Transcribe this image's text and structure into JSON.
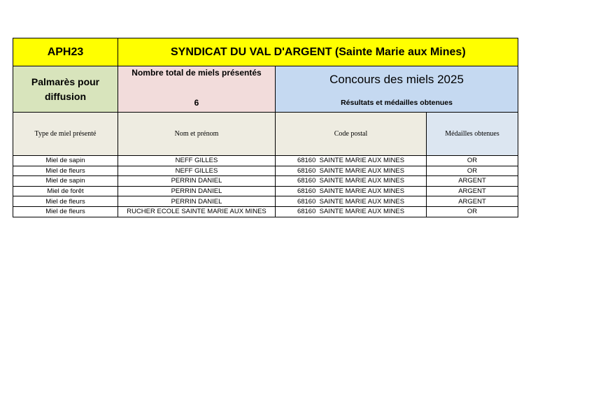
{
  "header": {
    "code": "APH23",
    "title": "SYNDICAT DU VAL D'ARGENT (Sainte Marie aux Mines)"
  },
  "subheader": {
    "palmares": "Palmarès pour diffusion",
    "total_label": "Nombre total de miels présentés",
    "total_value": "6",
    "contest_title": "Concours des miels 2025",
    "contest_subtitle": "Résultats et médailles obtenues"
  },
  "columns": [
    "Type de miel présenté",
    "Nom et prénom",
    "Code postal",
    "Médailles obtenues"
  ],
  "rows": [
    [
      "Miel de sapin",
      "NEFF GILLES",
      "68160  SAINTE MARIE AUX MINES",
      "OR"
    ],
    [
      "Miel de fleurs",
      "NEFF GILLES",
      "68160  SAINTE MARIE AUX MINES",
      "OR"
    ],
    [
      "Miel de sapin",
      "PERRIN DANIEL",
      "68160  SAINTE MARIE AUX MINES",
      "ARGENT"
    ],
    [
      "Miel de forêt",
      "PERRIN DANIEL",
      "68160  SAINTE MARIE AUX MINES",
      "ARGENT"
    ],
    [
      "Miel de fleurs",
      "PERRIN DANIEL",
      "68160  SAINTE MARIE AUX MINES",
      "ARGENT"
    ],
    [
      "Miel de fleurs",
      "RUCHER ECOLE SAINTE MARIE AUX MINES",
      "68160  SAINTE MARIE AUX MINES",
      "OR"
    ]
  ],
  "colors": {
    "title_bg": "#ffff00",
    "green": "#d8e4bc",
    "pink": "#f2dcdb",
    "blue": "#c5d9f1",
    "header_bg": "#eeece1",
    "medal_header_bg": "#dce6f1"
  }
}
